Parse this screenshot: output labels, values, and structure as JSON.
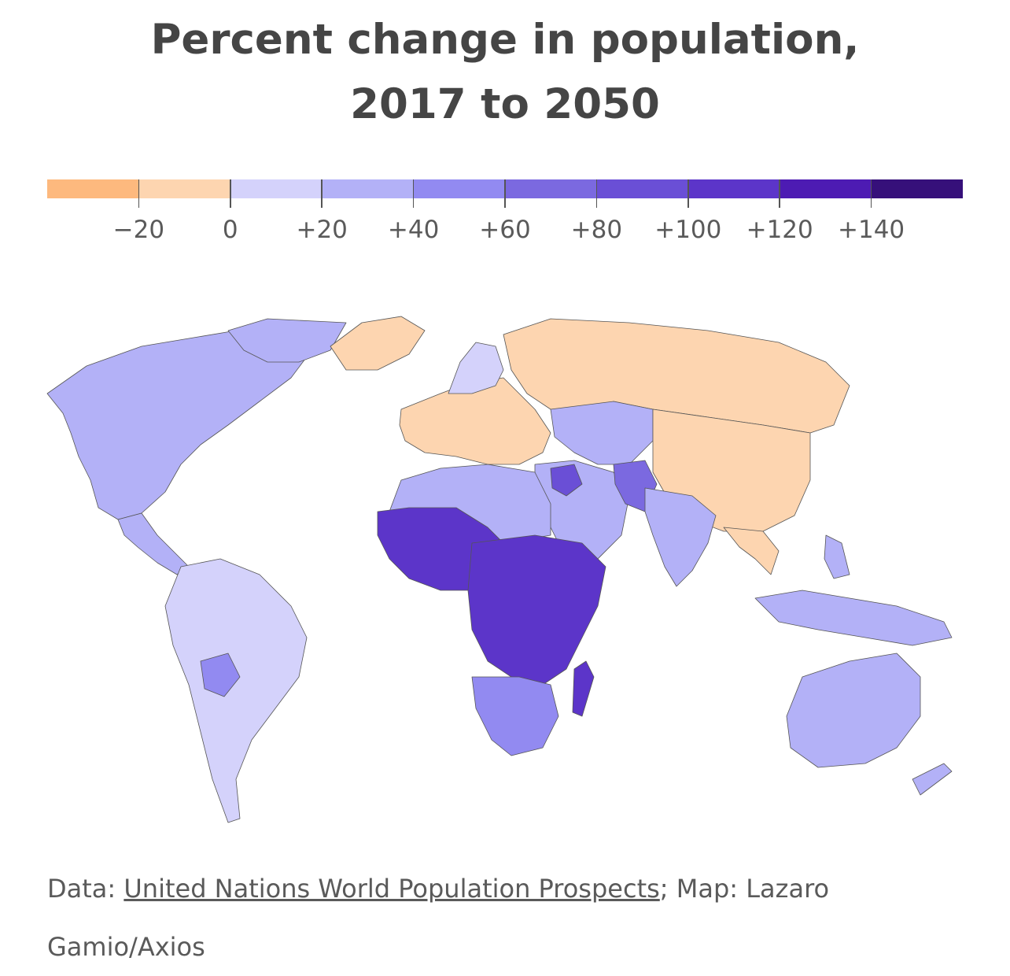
{
  "title": {
    "line1": "Percent change in population,",
    "line2": "2017 to 2050"
  },
  "legend": {
    "colors": [
      "#fdb97e",
      "#fdd5b0",
      "#d4d2fb",
      "#b3b1f7",
      "#928af1",
      "#7b69e0",
      "#6a4fd6",
      "#5c35c9",
      "#4d1bb3",
      "#36107a"
    ],
    "tick_labels": [
      "−20",
      "0",
      "+20",
      "+40",
      "+60",
      "+80",
      "+100",
      "+120",
      "+140"
    ],
    "tick_values": [
      -20,
      0,
      20,
      40,
      60,
      80,
      100,
      120,
      140
    ]
  },
  "regions": [
    {
      "name": "Russia",
      "color": "#fdd5b0"
    },
    {
      "name": "China",
      "color": "#fdd5b0"
    },
    {
      "name": "Europe",
      "color": "#fdd5b0"
    },
    {
      "name": "North America",
      "color": "#b3b1f7"
    },
    {
      "name": "South America",
      "color": "#d4d2fb"
    },
    {
      "name": "Africa",
      "color": "#5c35c9"
    },
    {
      "name": "Australia",
      "color": "#b3b1f7"
    },
    {
      "name": "India",
      "color": "#b3b1f7"
    }
  ],
  "credit": {
    "prefix": "Data: ",
    "source_link": "United Nations World Population Prospects",
    "suffix": "; Map: Lazaro Gamio/Axios"
  }
}
